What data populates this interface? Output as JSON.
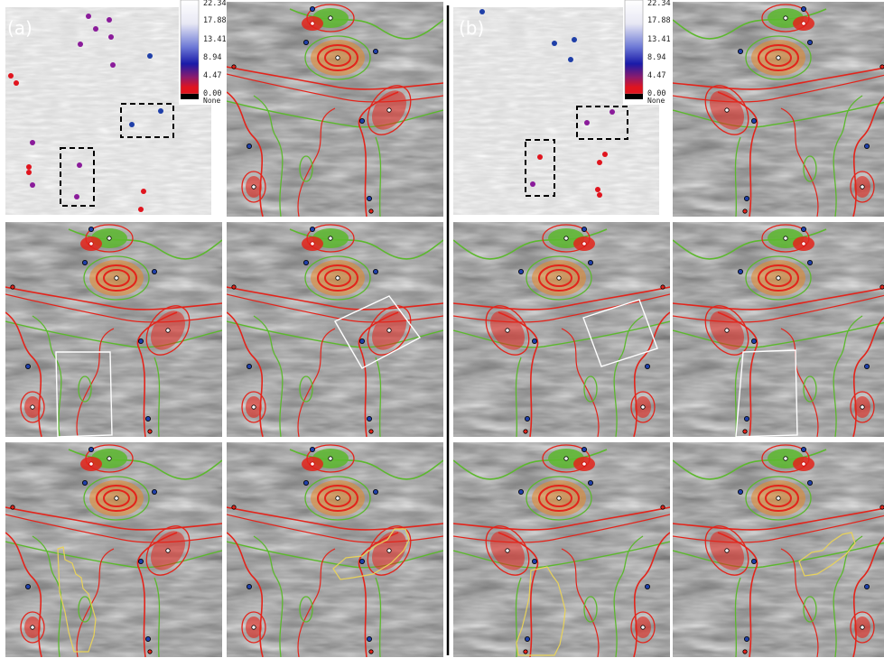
{
  "figure": {
    "groups": [
      {
        "label": "(a)",
        "colorbar": {
          "ticks": [
            "22.34",
            "17.88",
            "13.41",
            "8.94",
            "4.47",
            "0.00"
          ],
          "none_label": "None"
        }
      },
      {
        "label": "(b)",
        "colorbar": {
          "ticks": [
            "22.34",
            "17.88",
            "13.41",
            "8.94",
            "4.47",
            "0.00"
          ],
          "none_label": "None"
        }
      }
    ]
  },
  "colors": {
    "background": "#ffffff",
    "flow_dark": "#6b6b6b",
    "flow_light": "#d9d9d9",
    "separatrix_red": "#e3241b",
    "separatrix_green": "#5cb82e",
    "orbit_orange": "#e8892a",
    "saddle_blue": "#1f3fa8",
    "region_outline_white": "#ffffff",
    "region_outline_yellow": "#e8d25a",
    "selection_box": "#000000",
    "colorbar_stops": [
      "#ffffff",
      "#6e7ad6",
      "#1a1aa8",
      "#8a1b6e",
      "#e0141e",
      "#000000"
    ]
  }
}
